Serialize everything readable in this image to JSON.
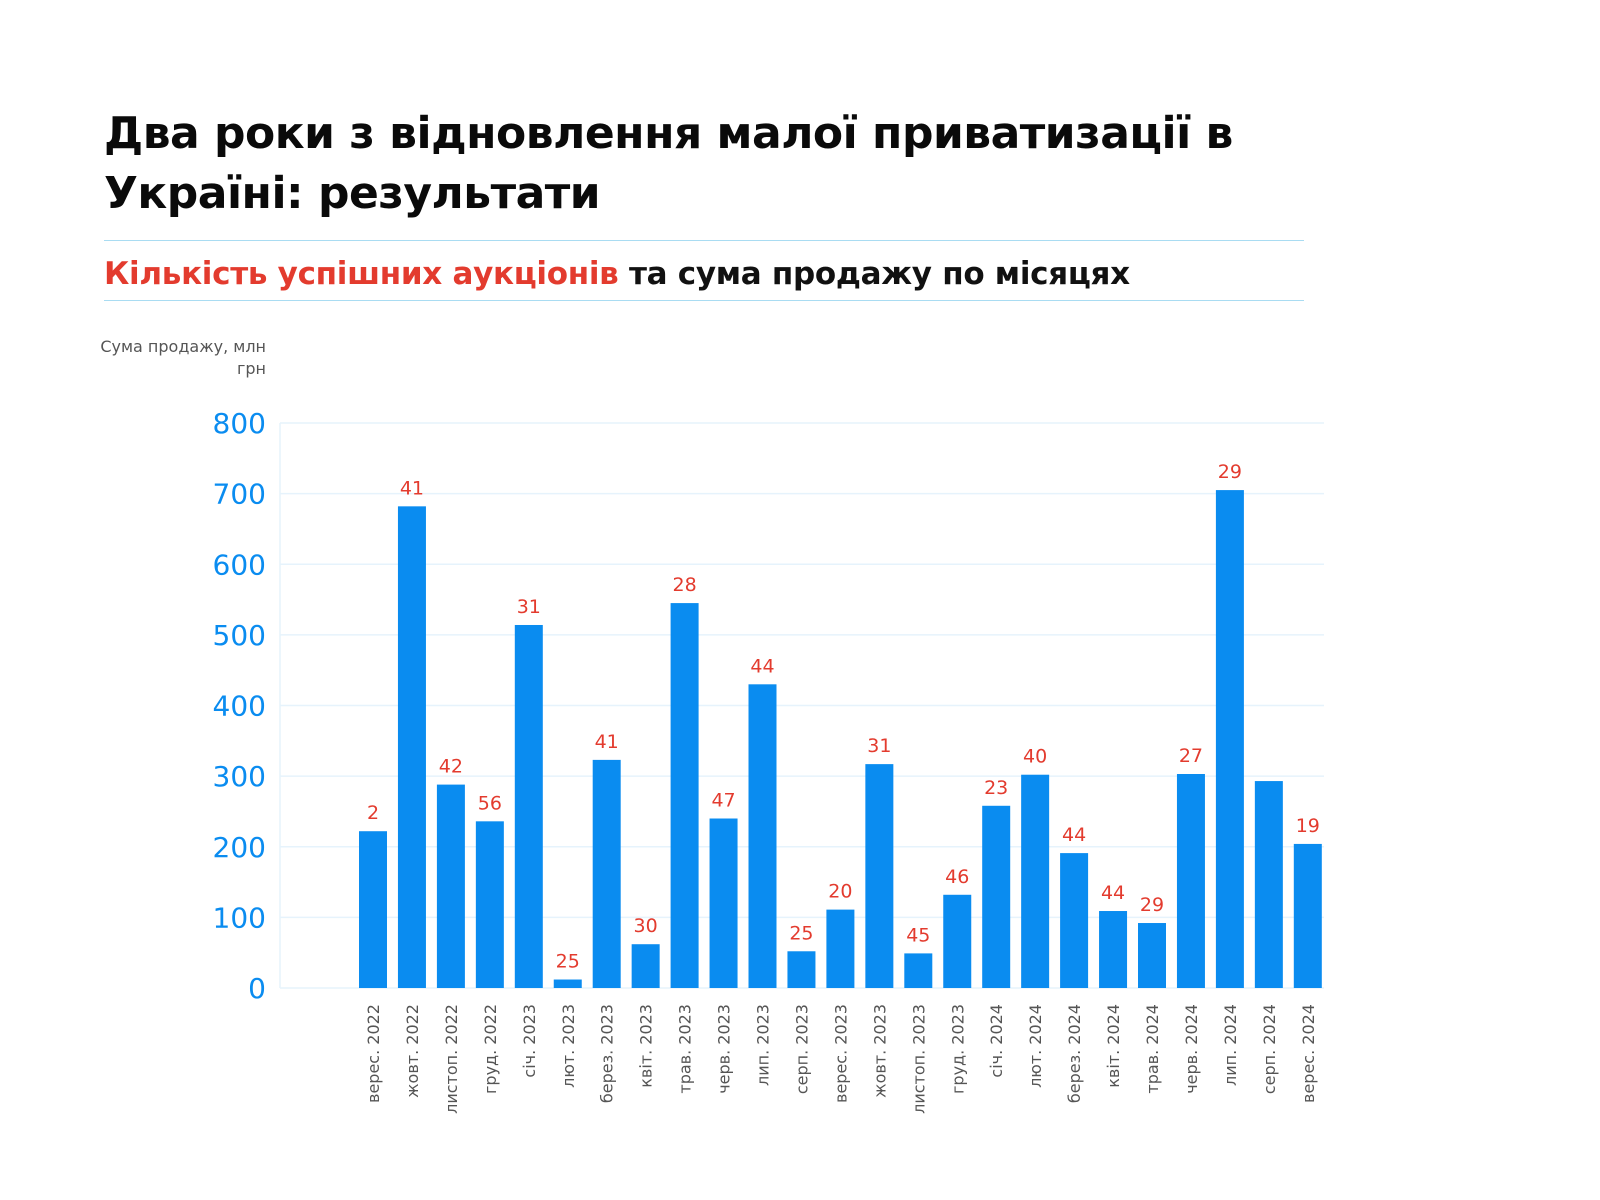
{
  "header": {
    "title": "Два роки з відновлення малої приватизації в Україні: результати",
    "subtitle_highlight": "Кількість успішних аукціонів",
    "subtitle_rest": " та сума продажу по місяцях"
  },
  "colors": {
    "bar": "#0a8cf0",
    "count_label": "#e33b2e",
    "axis_text": "#0a8cf0",
    "grid": "#e6f3fc",
    "rule": "#a9dcf2"
  },
  "chart_data": {
    "type": "bar",
    "ylabel": "Сума продажу, млн грн",
    "ylim": [
      0,
      800
    ],
    "yticks": [
      0,
      100,
      200,
      300,
      400,
      500,
      600,
      700,
      800
    ],
    "grid": true,
    "categories": [
      "верес. 2022",
      "жовт. 2022",
      "листоп. 2022",
      "груд. 2022",
      "січ. 2023",
      "лют. 2023",
      "берез. 2023",
      "квіт. 2023",
      "трав. 2023",
      "черв. 2023",
      "лип. 2023",
      "серп. 2023",
      "верес. 2023",
      "жовт. 2023",
      "листоп. 2023",
      "груд. 2023",
      "січ. 2024",
      "лют. 2024",
      "берез. 2024",
      "квіт. 2024",
      "трав. 2024",
      "черв. 2024",
      "лип. 2024",
      "серп. 2024",
      "верес. 2024"
    ],
    "series": [
      {
        "values": [
          222,
          682,
          288,
          236,
          514,
          12,
          323,
          62,
          545,
          240,
          430,
          52,
          111,
          317,
          49,
          132,
          258,
          302,
          191,
          109,
          92,
          303,
          705,
          293,
          204
        ]
      }
    ],
    "data_labels": [
      "2",
      "41",
      "42",
      "56",
      "31",
      "25",
      "41",
      "30",
      "28",
      "47",
      "44",
      "25",
      "20",
      "31",
      "45",
      "46",
      "23",
      "40",
      "44",
      "44",
      "29",
      "27",
      "29",
      "",
      "19"
    ]
  }
}
